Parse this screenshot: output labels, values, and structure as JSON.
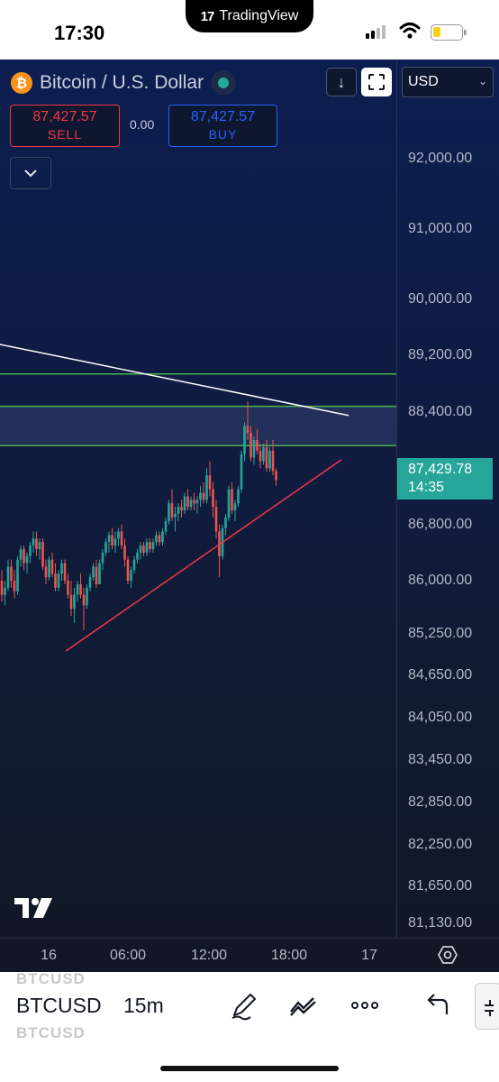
{
  "status": {
    "time": "17:30",
    "island_label": "TradingView",
    "battery_level": 0.25
  },
  "header": {
    "symbol_name": "Bitcoin / U.S. Dollar",
    "sell": {
      "price": "87,427.57",
      "label": "SELL"
    },
    "buy": {
      "price": "87,427.57",
      "label": "BUY"
    },
    "spread": "0.00",
    "currency": "USD"
  },
  "price_axis": {
    "ticks": [
      "92,000.00",
      "91,000.00",
      "90,000.00",
      "89,200.00",
      "88,400.00",
      "87,600.00",
      "86,800.00",
      "86,000.00",
      "85,250.00",
      "84,650.00",
      "84,050.00",
      "83,450.00",
      "82,850.00",
      "82,250.00",
      "81,650.00",
      "81,130.00"
    ],
    "current_price": "87,429.78",
    "countdown": "14:35"
  },
  "time_axis": {
    "labels": [
      "16",
      "06:00",
      "12:00",
      "18:00",
      "17"
    ]
  },
  "chart_data": {
    "type": "candlestick",
    "interval": "15m",
    "ylim": [
      80900,
      92900
    ],
    "x_labels": [
      "16",
      "06:00",
      "12:00",
      "18:00",
      "17"
    ],
    "horizontal_levels": [
      88940,
      88480,
      87920
    ],
    "highlight_zone": [
      87920,
      88480
    ],
    "trendline_white": {
      "from": {
        "i": -5,
        "y": 89400
      },
      "to": {
        "i": 110,
        "y": 88350
      }
    },
    "trendline_red": {
      "from": {
        "i": 18,
        "y": 85000
      },
      "to": {
        "i": 94,
        "y": 87720
      }
    },
    "candles": [
      [
        86000,
        86150,
        85700,
        85800
      ],
      [
        85800,
        86000,
        85650,
        85900
      ],
      [
        85900,
        86300,
        85850,
        86200
      ],
      [
        86200,
        86300,
        85900,
        86000
      ],
      [
        86000,
        86150,
        85750,
        85850
      ],
      [
        85850,
        86350,
        85800,
        86300
      ],
      [
        86300,
        86500,
        86200,
        86450
      ],
      [
        86450,
        86500,
        86150,
        86250
      ],
      [
        86250,
        86400,
        86100,
        86350
      ],
      [
        86350,
        86550,
        86250,
        86500
      ],
      [
        86500,
        86700,
        86400,
        86600
      ],
      [
        86600,
        86700,
        86350,
        86450
      ],
      [
        86450,
        86600,
        86300,
        86550
      ],
      [
        86550,
        86600,
        86150,
        86200
      ],
      [
        86200,
        86300,
        85950,
        86050
      ],
      [
        86050,
        86350,
        86000,
        86300
      ],
      [
        86300,
        86400,
        86050,
        86100
      ],
      [
        86100,
        86250,
        85850,
        85900
      ],
      [
        85900,
        86150,
        85850,
        86100
      ],
      [
        86100,
        86300,
        86000,
        86250
      ],
      [
        86250,
        86300,
        85950,
        86000
      ],
      [
        86000,
        86100,
        85750,
        85800
      ],
      [
        85800,
        86000,
        85500,
        85600
      ],
      [
        85600,
        85900,
        85400,
        85800
      ],
      [
        85800,
        86000,
        85700,
        85950
      ],
      [
        85950,
        86100,
        85750,
        85800
      ],
      [
        85800,
        85900,
        85300,
        85650
      ],
      [
        85650,
        85950,
        85600,
        85900
      ],
      [
        85900,
        86100,
        85850,
        86050
      ],
      [
        86050,
        86250,
        86000,
        86200
      ],
      [
        86200,
        86300,
        85900,
        85950
      ],
      [
        85950,
        86300,
        85950,
        86250
      ],
      [
        86250,
        86450,
        86150,
        86400
      ],
      [
        86400,
        86600,
        86350,
        86550
      ],
      [
        86550,
        86700,
        86400,
        86650
      ],
      [
        86650,
        86750,
        86450,
        86500
      ],
      [
        86500,
        86700,
        86400,
        86600
      ],
      [
        86600,
        86750,
        86500,
        86700
      ],
      [
        86700,
        86800,
        86450,
        86500
      ],
      [
        86500,
        86600,
        86200,
        86300
      ],
      [
        86300,
        86350,
        85950,
        86000
      ],
      [
        86000,
        86200,
        85900,
        86150
      ],
      [
        86150,
        86350,
        86100,
        86300
      ],
      [
        86300,
        86450,
        86250,
        86400
      ],
      [
        86400,
        86550,
        86300,
        86500
      ],
      [
        86500,
        86550,
        86350,
        86400
      ],
      [
        86400,
        86600,
        86350,
        86550
      ],
      [
        86550,
        86600,
        86400,
        86450
      ],
      [
        86450,
        86600,
        86400,
        86550
      ],
      [
        86550,
        86700,
        86500,
        86650
      ],
      [
        86650,
        86700,
        86500,
        86550
      ],
      [
        86550,
        86750,
        86500,
        86700
      ],
      [
        86700,
        86900,
        86650,
        86850
      ],
      [
        86850,
        87150,
        86800,
        87100
      ],
      [
        87100,
        87300,
        86850,
        86900
      ],
      [
        86900,
        87050,
        86700,
        86950
      ],
      [
        86950,
        87100,
        86850,
        87050
      ],
      [
        87050,
        87150,
        86900,
        87000
      ],
      [
        87000,
        87250,
        86950,
        87200
      ],
      [
        87200,
        87300,
        87000,
        87050
      ],
      [
        87050,
        87200,
        87000,
        87150
      ],
      [
        87150,
        87250,
        87000,
        87100
      ],
      [
        87100,
        87200,
        86950,
        87150
      ],
      [
        87150,
        87350,
        87050,
        87250
      ],
      [
        87250,
        87400,
        87100,
        87150
      ],
      [
        87150,
        87600,
        87100,
        87500
      ],
      [
        87500,
        87700,
        87200,
        87300
      ],
      [
        87300,
        87400,
        86900,
        87050
      ],
      [
        87050,
        87150,
        86600,
        86700
      ],
      [
        86700,
        86800,
        86050,
        86350
      ],
      [
        86350,
        86800,
        86300,
        86750
      ],
      [
        86750,
        86950,
        86650,
        86900
      ],
      [
        86900,
        87350,
        86850,
        87300
      ],
      [
        87300,
        87400,
        86950,
        87000
      ],
      [
        87000,
        87150,
        86850,
        87100
      ],
      [
        87100,
        87350,
        87050,
        87300
      ],
      [
        87300,
        87850,
        87250,
        87800
      ],
      [
        87800,
        88250,
        87700,
        88200
      ],
      [
        88200,
        88550,
        88000,
        88100
      ],
      [
        88100,
        88200,
        87700,
        87750
      ],
      [
        87750,
        88050,
        87650,
        88000
      ],
      [
        88000,
        88150,
        87800,
        87850
      ],
      [
        87850,
        87950,
        87600,
        87700
      ],
      [
        87700,
        87950,
        87650,
        87900
      ],
      [
        87900,
        88000,
        87550,
        87600
      ],
      [
        87600,
        87900,
        87550,
        87850
      ],
      [
        87850,
        88000,
        87500,
        87560
      ],
      [
        87560,
        87600,
        87350,
        87430
      ]
    ]
  }
}
